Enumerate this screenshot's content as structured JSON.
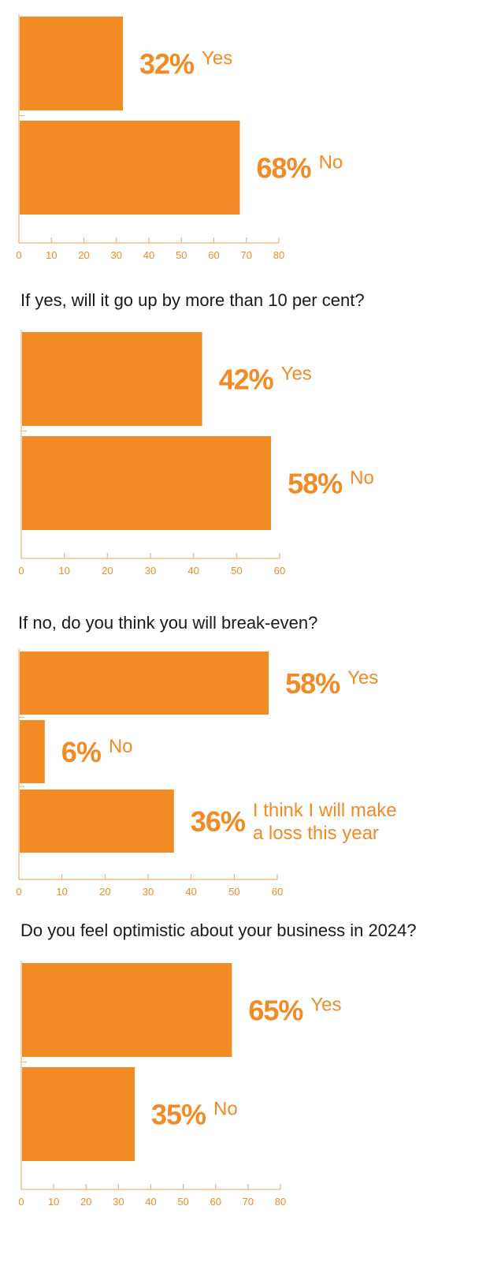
{
  "colors": {
    "bar": "#F28A26",
    "axis": "#F0B27A",
    "text": "#1A1A1A"
  },
  "chart_data": [
    {
      "type": "bar",
      "orientation": "horizontal",
      "title": "",
      "categories": [
        "Yes",
        "No"
      ],
      "values": [
        32,
        68
      ],
      "value_labels": [
        "32%",
        "68%"
      ],
      "category_labels": [
        [
          "Yes"
        ],
        [
          "No"
        ]
      ],
      "xlim": [
        0,
        80
      ],
      "xticks": [
        "0",
        "10",
        "20",
        "30",
        "40",
        "50",
        "60",
        "70",
        "80"
      ]
    },
    {
      "type": "bar",
      "orientation": "horizontal",
      "title": "If yes, will it go up by more than 10 per cent?",
      "categories": [
        "Yes",
        "No"
      ],
      "values": [
        42,
        58
      ],
      "value_labels": [
        "42%",
        "58%"
      ],
      "category_labels": [
        [
          "Yes"
        ],
        [
          "No"
        ]
      ],
      "xlim": [
        0,
        60
      ],
      "xticks": [
        "0",
        "10",
        "20",
        "30",
        "40",
        "50",
        "60"
      ]
    },
    {
      "type": "bar",
      "orientation": "horizontal",
      "title": "If no, do you think you will break-even?",
      "categories": [
        "Yes",
        "No",
        "I think I will make a loss this year"
      ],
      "values": [
        58,
        6,
        36
      ],
      "value_labels": [
        "58%",
        "6%",
        "36%"
      ],
      "category_labels": [
        [
          "Yes"
        ],
        [
          "No"
        ],
        [
          "I think I will make",
          "a loss this year"
        ]
      ],
      "xlim": [
        0,
        60
      ],
      "xticks": [
        "0",
        "10",
        "20",
        "30",
        "40",
        "50",
        "60"
      ]
    },
    {
      "type": "bar",
      "orientation": "horizontal",
      "title": "Do you feel optimistic about your business in 2024?",
      "categories": [
        "Yes",
        "No"
      ],
      "values": [
        65,
        35
      ],
      "value_labels": [
        "65%",
        "35%"
      ],
      "category_labels": [
        [
          "Yes"
        ],
        [
          "No"
        ]
      ],
      "xlim": [
        0,
        80
      ],
      "xticks": [
        "0",
        "10",
        "20",
        "30",
        "40",
        "50",
        "60",
        "70",
        "80"
      ]
    }
  ]
}
